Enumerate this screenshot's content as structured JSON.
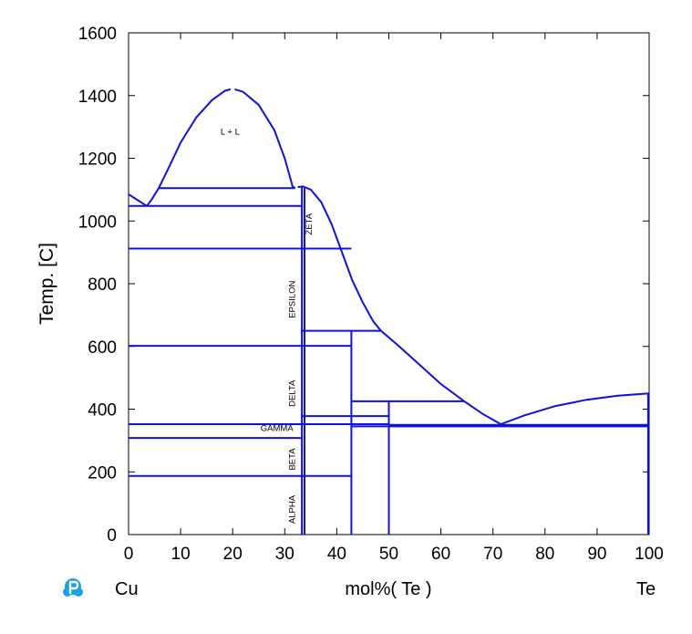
{
  "chart_data": {
    "type": "line",
    "title": "",
    "xlabel": "mol%( Te )",
    "ylabel": "Temp. [C]",
    "xlim": [
      0,
      100
    ],
    "ylim": [
      0,
      1600
    ],
    "x_ticks": [
      "0",
      "10",
      "20",
      "30",
      "40",
      "50",
      "60",
      "70",
      "80",
      "90",
      "100"
    ],
    "y_ticks": [
      "0",
      "200",
      "400",
      "600",
      "800",
      "1000",
      "1200",
      "1400",
      "1600"
    ],
    "left_component": "Cu",
    "right_component": "Te",
    "line_color": "#1010e0",
    "phase_labels": [
      {
        "text": "L + L",
        "x": 19.5,
        "y": 1275,
        "orientation": "horizontal"
      },
      {
        "text": "ZETA",
        "x": 35.2,
        "y": 990,
        "orientation": "vertical"
      },
      {
        "text": "EPSILON",
        "x": 32.0,
        "y": 750,
        "orientation": "vertical"
      },
      {
        "text": "DELTA",
        "x": 32.0,
        "y": 450,
        "orientation": "vertical"
      },
      {
        "text": "GAMMA",
        "x": 28.5,
        "y": 330,
        "orientation": "horizontal"
      },
      {
        "text": "BETA",
        "x": 32.0,
        "y": 240,
        "orientation": "vertical"
      },
      {
        "text": "ALPHA",
        "x": 32.0,
        "y": 80,
        "orientation": "vertical"
      }
    ],
    "series": [
      {
        "values": [
          [
            0,
            1085
          ],
          [
            3.5,
            1048
          ]
        ]
      },
      {
        "values": [
          [
            3.5,
            1048
          ],
          [
            4.5,
            1070
          ],
          [
            5.8,
            1105
          ]
        ]
      },
      {
        "values": [
          [
            5.8,
            1105
          ],
          [
            8,
            1180
          ],
          [
            10,
            1250
          ],
          [
            13,
            1330
          ],
          [
            16,
            1385
          ],
          [
            18.5,
            1415
          ],
          [
            19.6,
            1420
          ]
        ]
      },
      {
        "values": [
          [
            20.4,
            1420
          ],
          [
            22,
            1412
          ],
          [
            25,
            1370
          ],
          [
            28,
            1290
          ],
          [
            30,
            1200
          ],
          [
            31.5,
            1110
          ],
          [
            32,
            1105
          ]
        ]
      },
      {
        "values": [
          [
            32.5,
            1108
          ],
          [
            33.5,
            1110
          ],
          [
            35,
            1100
          ],
          [
            37,
            1060
          ],
          [
            39,
            990
          ],
          [
            41,
            900
          ],
          [
            43,
            810
          ],
          [
            45,
            740
          ],
          [
            47,
            680
          ],
          [
            48.5,
            650
          ]
        ]
      },
      {
        "values": [
          [
            48.5,
            650
          ],
          [
            52,
            600
          ],
          [
            56,
            540
          ],
          [
            60,
            480
          ],
          [
            64.5,
            425
          ]
        ]
      },
      {
        "values": [
          [
            64.5,
            425
          ],
          [
            68,
            385
          ],
          [
            71.5,
            352
          ]
        ]
      },
      {
        "values": [
          [
            71.5,
            352
          ],
          [
            76,
            380
          ],
          [
            82,
            410
          ],
          [
            88,
            430
          ],
          [
            94,
            443
          ],
          [
            100,
            450
          ]
        ]
      },
      {
        "values": [
          [
            5.8,
            1105
          ],
          [
            32,
            1105
          ]
        ]
      },
      {
        "values": [
          [
            0,
            1048
          ],
          [
            33.3,
            1048
          ]
        ]
      },
      {
        "values": [
          [
            0,
            912
          ],
          [
            42.8,
            912
          ]
        ]
      },
      {
        "values": [
          [
            0,
            602
          ],
          [
            42.8,
            602
          ]
        ]
      },
      {
        "values": [
          [
            0,
            352
          ],
          [
            50,
            352
          ]
        ]
      },
      {
        "values": [
          [
            0,
            308
          ],
          [
            33.3,
            308
          ]
        ]
      },
      {
        "values": [
          [
            0,
            187
          ],
          [
            42.8,
            187
          ]
        ]
      },
      {
        "values": [
          [
            33.3,
            650
          ],
          [
            48.5,
            650
          ]
        ]
      },
      {
        "values": [
          [
            42.8,
            425
          ],
          [
            64.5,
            425
          ]
        ]
      },
      {
        "values": [
          [
            33.3,
            378
          ],
          [
            50,
            378
          ]
        ]
      },
      {
        "values": [
          [
            42.8,
            345
          ],
          [
            100,
            345
          ]
        ]
      },
      {
        "values": [
          [
            50,
            350
          ],
          [
            100,
            350
          ]
        ]
      },
      {
        "values": [
          [
            33.3,
            0
          ],
          [
            33.3,
            1110
          ]
        ]
      },
      {
        "values": [
          [
            33.8,
            0
          ],
          [
            33.8,
            1105
          ]
        ]
      },
      {
        "values": [
          [
            42.8,
            0
          ],
          [
            42.8,
            650
          ]
        ]
      },
      {
        "values": [
          [
            50,
            0
          ],
          [
            50,
            425
          ]
        ]
      },
      {
        "values": [
          [
            99.8,
            0
          ],
          [
            99.8,
            450
          ]
        ]
      }
    ]
  }
}
